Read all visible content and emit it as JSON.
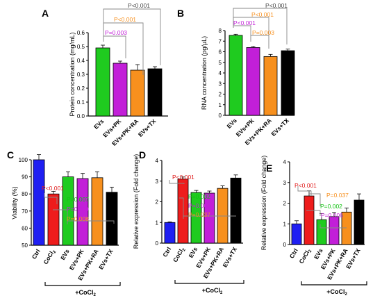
{
  "colors": {
    "blue": "#1f1ff2",
    "red": "#ee1c1c",
    "green": "#1fcb1f",
    "purple": "#c21fd8",
    "orange": "#f7901e",
    "black": "#000000",
    "pval_black": "#444444",
    "pval_orange": "#f7901e",
    "pval_purple": "#c21fd8",
    "pval_red": "#e01c1c",
    "pval_green": "#12c212"
  },
  "chart_data": [
    {
      "panel": "A",
      "type": "bar",
      "ylabel": "Protein concentration (mg/mL)",
      "ylim": [
        0,
        0.6
      ],
      "yticks": [
        "0.0",
        "0.1",
        "0.2",
        "0.3",
        "0.4",
        "0.5",
        "0.6"
      ],
      "categories": [
        "EVs",
        "EVs+PK",
        "EVs+PK+RA",
        "EVs+TX"
      ],
      "values": [
        0.49,
        0.38,
        0.33,
        0.34
      ],
      "errors": [
        0.02,
        0.015,
        0.04,
        0.015
      ],
      "colors": [
        "green",
        "purple",
        "orange",
        "black"
      ],
      "annotations": [
        {
          "text": "P<0.001",
          "color": "pval_black"
        },
        {
          "text": "P<0.001",
          "color": "pval_orange"
        },
        {
          "text": "P=0.003",
          "color": "pval_purple"
        }
      ]
    },
    {
      "panel": "B",
      "type": "bar",
      "ylabel": "RNA concentration (pg/µL)",
      "ylim": [
        0,
        8
      ],
      "yticks": [
        "0",
        "1",
        "2",
        "3",
        "4",
        "5",
        "6",
        "7",
        "8"
      ],
      "categories": [
        "EVs",
        "EVs+PK",
        "EVs+PK+RA",
        "EVs+TX"
      ],
      "values": [
        7.55,
        6.4,
        5.55,
        6.1
      ],
      "errors": [
        0.1,
        0.1,
        0.2,
        0.15
      ],
      "colors": [
        "green",
        "purple",
        "orange",
        "black"
      ],
      "annotations": [
        {
          "text": "P<0.001",
          "color": "pval_black"
        },
        {
          "text": "P<0.001",
          "color": "pval_orange"
        },
        {
          "text": "P<0.001",
          "color": "pval_purple"
        },
        {
          "text": "P=0.003",
          "color": "pval_orange"
        }
      ]
    },
    {
      "panel": "C",
      "type": "bar",
      "ylabel": "Viability (%)",
      "ylim": [
        50,
        100
      ],
      "yticks": [
        "50",
        "60",
        "70",
        "80",
        "90",
        "100"
      ],
      "categories": [
        "Ctrl",
        "CoCl₂",
        "EVs",
        "EVs+PK",
        "EVs+PK+RA",
        "EVs+TX"
      ],
      "values": [
        100,
        80,
        90,
        89,
        89.5,
        81
      ],
      "errors": [
        3,
        1.5,
        3,
        3,
        3.5,
        3
      ],
      "colors": [
        "blue",
        "red",
        "green",
        "purple",
        "orange",
        "black"
      ],
      "group_label": "+CoCl₂",
      "annotations": [
        {
          "text": "P<0.001",
          "color": "pval_red"
        },
        {
          "text": "P=0.007",
          "color": "pval_green"
        },
        {
          "text": "P=0.009",
          "color": "pval_purple"
        },
        {
          "text": "P=0.008",
          "color": "pval_orange"
        }
      ]
    },
    {
      "panel": "D",
      "type": "bar",
      "ylabel": "Relative expression (Fold change)",
      "ylim": [
        0,
        4
      ],
      "yticks": [
        "0",
        "1",
        "2",
        "3",
        "4"
      ],
      "categories": [
        "Ctrl",
        "CoCl₂",
        "EVs",
        "EVs+PK",
        "EVs+PK+RA",
        "EVs+TX"
      ],
      "values": [
        1.0,
        3.1,
        2.45,
        2.42,
        2.65,
        3.15
      ],
      "errors": [
        0.03,
        0.1,
        0.1,
        0.1,
        0.12,
        0.15
      ],
      "colors": [
        "blue",
        "red",
        "green",
        "purple",
        "orange",
        "black"
      ],
      "group_label": "+CoCl₂",
      "annotations": [
        {
          "text": "P<0.001",
          "color": "pval_red"
        },
        {
          "text": "P=0.002",
          "color": "pval_green"
        },
        {
          "text": "P=0.006",
          "color": "pval_purple"
        },
        {
          "text": "P=0.037",
          "color": "pval_orange"
        }
      ]
    },
    {
      "panel": "E",
      "type": "bar",
      "ylabel": "Relative expression (Fold change)",
      "ylim": [
        0,
        4
      ],
      "yticks": [
        "0",
        "1",
        "2",
        "3",
        "4"
      ],
      "categories": [
        "Ctrl",
        "CoCl₂",
        "EVs",
        "EVs+PK",
        "EVs+PK+RA",
        "EVs+TX"
      ],
      "values": [
        1.0,
        2.35,
        1.2,
        1.35,
        1.57,
        2.15
      ],
      "errors": [
        0.15,
        0.25,
        0.3,
        0.2,
        0.2,
        0.3
      ],
      "colors": [
        "blue",
        "red",
        "green",
        "purple",
        "orange",
        "black"
      ],
      "group_label": "+CoCl₂",
      "annotations": [
        {
          "text": "P<0.001",
          "color": "pval_red"
        },
        {
          "text": "P=0.037",
          "color": "pval_orange"
        },
        {
          "text": "P=0.002",
          "color": "pval_green"
        },
        {
          "text": "P=0.006",
          "color": "pval_purple"
        }
      ]
    }
  ]
}
